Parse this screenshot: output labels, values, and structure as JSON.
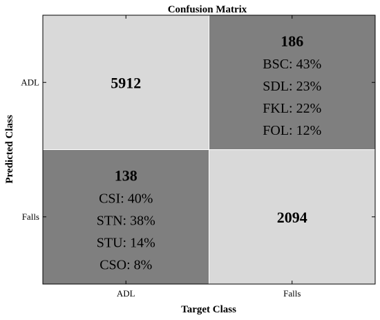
{
  "chart_data": {
    "type": "heatmap",
    "title": "Confusion Matrix",
    "xlabel": "Target Class",
    "ylabel": "Predicted Class",
    "x_categories": [
      "ADL",
      "Falls"
    ],
    "y_categories": [
      "ADL",
      "Falls"
    ],
    "cells": [
      {
        "predicted": "ADL",
        "target": "ADL",
        "value": 5912,
        "value_label": "5912",
        "breakdown": [],
        "shade": "light"
      },
      {
        "predicted": "ADL",
        "target": "Falls",
        "value": 186,
        "value_label": "186",
        "breakdown": [
          "BSC: 43%",
          "SDL: 23%",
          "FKL: 22%",
          "FOL: 12%"
        ],
        "shade": "dark"
      },
      {
        "predicted": "Falls",
        "target": "ADL",
        "value": 138,
        "value_label": "138",
        "breakdown": [
          "CSI: 40%",
          "STN: 38%",
          "STU: 14%",
          "CSO: 8%"
        ],
        "shade": "dark"
      },
      {
        "predicted": "Falls",
        "target": "Falls",
        "value": 2094,
        "value_label": "2094",
        "breakdown": [],
        "shade": "light"
      }
    ]
  },
  "colors": {
    "light_cell": "#d9d9d9",
    "dark_cell": "#7f7f7f",
    "grid_line": "#ffffff",
    "border": "#000000",
    "text": "#000000"
  }
}
